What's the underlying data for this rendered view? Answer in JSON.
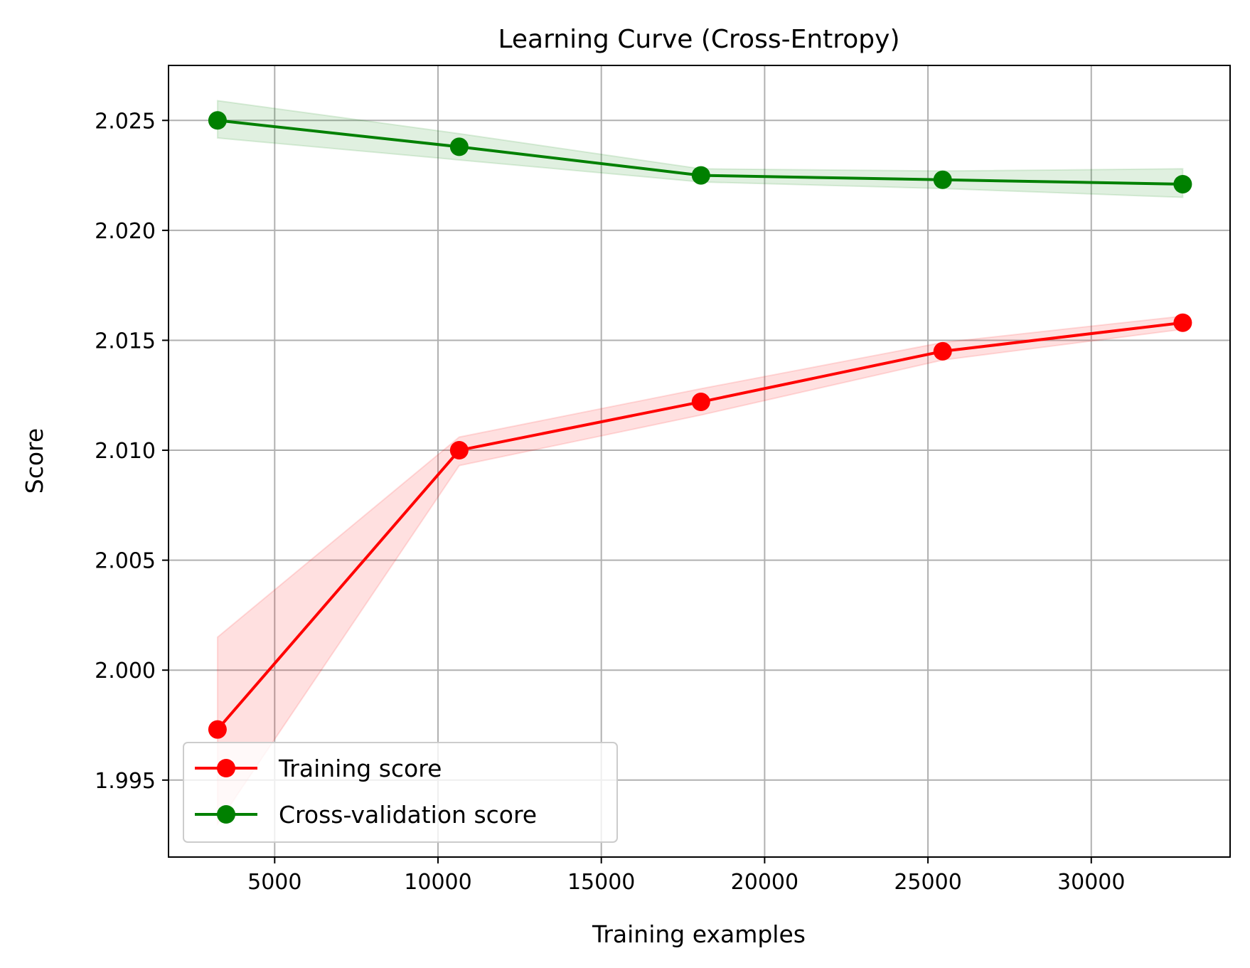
{
  "chart_data": {
    "type": "line",
    "title": "Learning Curve (Cross-Entropy)",
    "xlabel": "Training examples",
    "ylabel": "Score",
    "xlim": [
      1750,
      34250
    ],
    "ylim": [
      1.9915,
      2.0275
    ],
    "xticks": [
      5000,
      10000,
      15000,
      20000,
      25000,
      30000
    ],
    "xtick_labels": [
      "5000",
      "10000",
      "15000",
      "20000",
      "25000",
      "30000"
    ],
    "yticks": [
      1.995,
      2.0,
      2.005,
      2.01,
      2.015,
      2.02,
      2.025
    ],
    "ytick_labels": [
      "1.995",
      "2.000",
      "2.005",
      "2.010",
      "2.015",
      "2.020",
      "2.025"
    ],
    "grid": true,
    "legend_position": "lower-left",
    "x": [
      3250,
      10650,
      18050,
      25450,
      32800
    ],
    "series": [
      {
        "name": "Training score",
        "color": "#ff0000",
        "band_color": "#ffdddd",
        "values": [
          1.9973,
          2.01,
          2.0122,
          2.0145,
          2.0158
        ],
        "band_upper": [
          2.0015,
          2.0106,
          2.0128,
          2.0149,
          2.0161
        ],
        "band_lower": [
          1.993,
          2.0093,
          2.0116,
          2.0141,
          2.0155
        ]
      },
      {
        "name": "Cross-validation score",
        "color": "#008000",
        "band_color": "#ddf0dd",
        "values": [
          2.025,
          2.0238,
          2.0225,
          2.0223,
          2.0221
        ],
        "band_upper": [
          2.0259,
          2.0244,
          2.0228,
          2.0227,
          2.0228
        ],
        "band_lower": [
          2.0242,
          2.0232,
          2.0222,
          2.0219,
          2.0215
        ]
      }
    ]
  }
}
